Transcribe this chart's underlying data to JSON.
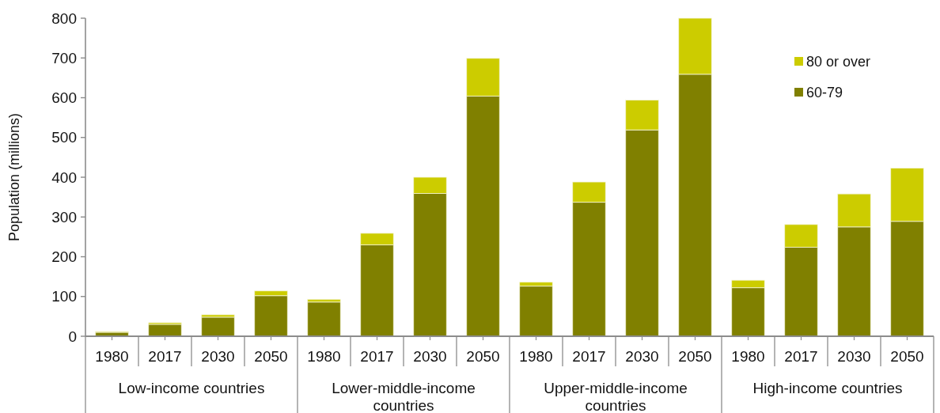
{
  "chart_data": {
    "type": "bar",
    "ylabel": "Population (millions)",
    "categories": [
      "1980",
      "2017",
      "2030",
      "2050",
      "1980",
      "2017",
      "2030",
      "2050",
      "1980",
      "2017",
      "2030",
      "2050",
      "1980",
      "2017",
      "2030",
      "2050"
    ],
    "series": [
      {
        "name": "60-79",
        "color": "#808000",
        "values": [
          10,
          30,
          48,
          102,
          86,
          230,
          359,
          604,
          126,
          337,
          519,
          659,
          122,
          224,
          275,
          289
        ]
      },
      {
        "name": "80 or over",
        "color": "#cccc00",
        "values": [
          2,
          4,
          6,
          12,
          7,
          29,
          41,
          95,
          10,
          51,
          75,
          141,
          19,
          57,
          83,
          134
        ]
      }
    ],
    "stacked": true,
    "ylim": [
      0,
      800
    ],
    "yticks": [
      0,
      100,
      200,
      300,
      400,
      500,
      600,
      700,
      800
    ],
    "legend": "top right",
    "annotations": [
      "Low-income countries",
      "Lower-middle-income countries",
      "Upper-middle-income countries",
      "High-income countries"
    ]
  }
}
